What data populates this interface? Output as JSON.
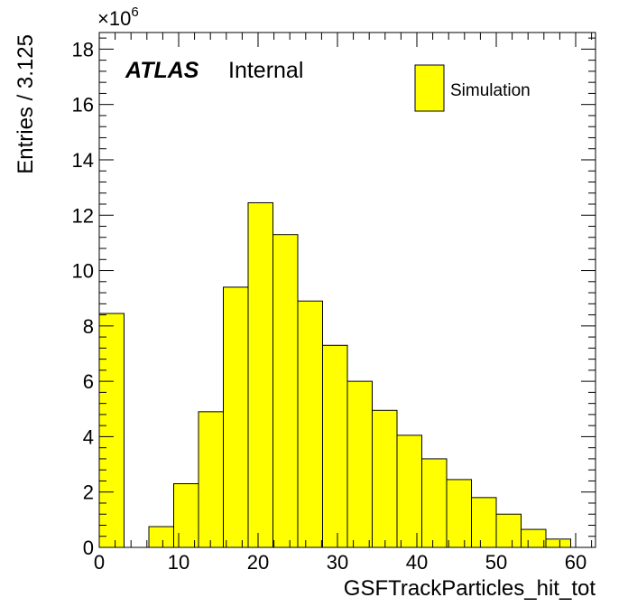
{
  "chart_data": {
    "type": "bar",
    "histogram": true,
    "bin_width": 3.125,
    "x_start": 0,
    "xlim": [
      0,
      62.5
    ],
    "ylim": [
      0,
      18.6
    ],
    "y_multiplier_label": "×10",
    "y_multiplier_exp": "6",
    "xlabel": "GSFTrackParticles_hit_tot",
    "ylabel": "Entries / 3.125",
    "x_ticks": [
      0,
      10,
      20,
      30,
      40,
      50,
      60
    ],
    "y_ticks": [
      0,
      2,
      4,
      6,
      8,
      10,
      12,
      14,
      16,
      18
    ],
    "x_tick_labels": [
      "0",
      "10",
      "20",
      "30",
      "40",
      "50",
      "60"
    ],
    "y_tick_labels": [
      "0",
      "2",
      "4",
      "6",
      "8",
      "10",
      "12",
      "14",
      "16",
      "18"
    ],
    "values": [
      8.45,
      0,
      0.75,
      2.3,
      4.9,
      9.4,
      12.45,
      11.3,
      8.9,
      7.3,
      6.0,
      4.95,
      4.05,
      3.2,
      2.45,
      1.8,
      1.2,
      0.65,
      0.3,
      0
    ],
    "series": [
      {
        "name": "Simulation",
        "color": "#ffff00"
      }
    ],
    "annotations": {
      "atlas": "ATLAS",
      "internal": "Internal"
    },
    "legend_position": "top-right",
    "grid": false
  }
}
